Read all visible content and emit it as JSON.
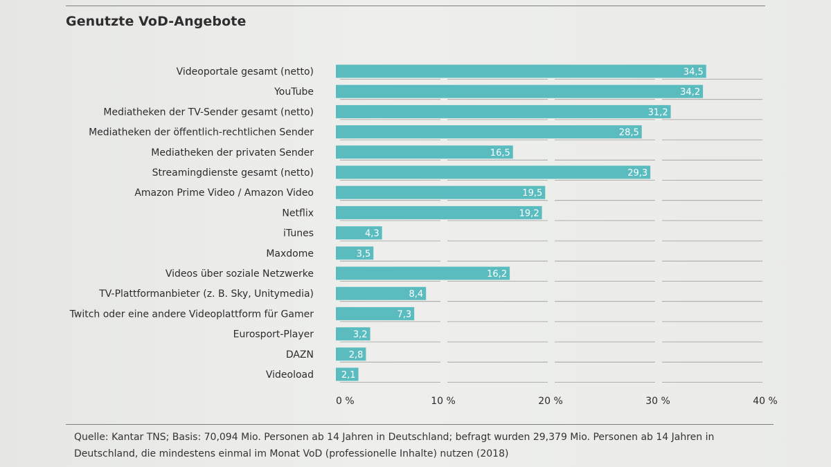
{
  "title": "Genutzte VoD-Angebote",
  "source": "Quelle: Kantar TNS; Basis: 70,094 Mio. Personen ab 14 Jahren in Deutschland; befragt wurden 29,379 Mio. Personen ab 14 Jahren in Deutschland, die mindestens einmal im Monat VoD (professionelle Inhalte) nutzen (2018)",
  "colors": {
    "bar": "#5bbcc0",
    "bar_label": "#ffffff",
    "grid": "#9a9c99",
    "text": "#2b2b2b"
  },
  "chart_data": {
    "type": "bar",
    "orientation": "horizontal",
    "title": "Genutzte VoD-Angebote",
    "categories": [
      "Videoportale gesamt (netto)",
      "YouTube",
      "Mediatheken der TV-Sender gesamt (netto)",
      "Mediatheken der öffentlich-rechtlichen Sender",
      "Mediatheken der privaten Sender",
      "Streamingdienste gesamt (netto)",
      "Amazon Prime Video / Amazon Video",
      "Netflix",
      "iTunes",
      "Maxdome",
      "Videos über soziale Netzwerke",
      "TV-Plattformanbieter (z. B. Sky, Unitymedia)",
      "Twitch oder eine andere Videoplattform für Gamer",
      "Eurosport-Player",
      "DAZN",
      "Videoload"
    ],
    "values": [
      34.5,
      34.2,
      31.2,
      28.5,
      16.5,
      29.3,
      19.5,
      19.2,
      4.3,
      3.5,
      16.2,
      8.4,
      7.3,
      3.2,
      2.8,
      2.1
    ],
    "value_labels": [
      "34,5",
      "34,2",
      "31,2",
      "28,5",
      "16,5",
      "29,3",
      "19,5",
      "19,2",
      "4,3",
      "3,5",
      "16,2",
      "8,4",
      "7,3",
      "3,2",
      "2,8",
      "2,1"
    ],
    "xlim": [
      0,
      40
    ],
    "x_ticks": [
      0,
      10,
      20,
      30,
      40
    ],
    "x_tick_labels": [
      "0 %",
      "10 %",
      "20 %",
      "30 %",
      "40 %"
    ],
    "grid": true,
    "legend": "none"
  }
}
